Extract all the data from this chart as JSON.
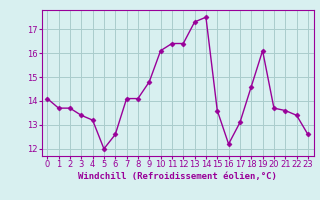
{
  "x": [
    0,
    1,
    2,
    3,
    4,
    5,
    6,
    7,
    8,
    9,
    10,
    11,
    12,
    13,
    14,
    15,
    16,
    17,
    18,
    19,
    20,
    21,
    22,
    23
  ],
  "y": [
    14.1,
    13.7,
    13.7,
    13.4,
    13.2,
    12.0,
    12.6,
    14.1,
    14.1,
    14.8,
    16.1,
    16.4,
    16.4,
    17.3,
    17.5,
    13.6,
    12.2,
    13.1,
    14.6,
    16.1,
    13.7,
    13.6,
    13.4,
    12.6
  ],
  "line_color": "#990099",
  "marker": "D",
  "markersize": 2.5,
  "linewidth": 1.0,
  "bg_color": "#d8f0f0",
  "grid_color": "#aacccc",
  "xlabel": "Windchill (Refroidissement éolien,°C)",
  "xlabel_fontsize": 6.5,
  "xlabel_color": "#990099",
  "ylabel_ticks": [
    12,
    13,
    14,
    15,
    16,
    17
  ],
  "xtick_labels": [
    "0",
    "1",
    "2",
    "3",
    "4",
    "5",
    "6",
    "7",
    "8",
    "9",
    "10",
    "11",
    "12",
    "13",
    "14",
    "15",
    "16",
    "17",
    "18",
    "19",
    "20",
    "21",
    "22",
    "23"
  ],
  "tick_fontsize": 6.0,
  "tick_color": "#990099",
  "ylim": [
    11.7,
    17.8
  ],
  "xlim": [
    -0.5,
    23.5
  ]
}
